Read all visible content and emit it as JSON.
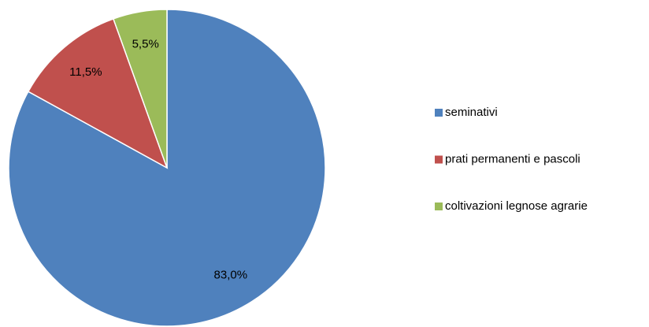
{
  "chart_data": {
    "type": "pie",
    "categories": [
      "seminativi",
      "prati permanenti e pascoli",
      "coltivazioni legnose agrarie"
    ],
    "values": [
      83.0,
      11.5,
      5.5
    ],
    "value_labels": [
      "83,0%",
      "11,5%",
      "5,5%"
    ],
    "colors": [
      "#4f81bd",
      "#c0504d",
      "#9bbb59"
    ],
    "legend": "right"
  }
}
